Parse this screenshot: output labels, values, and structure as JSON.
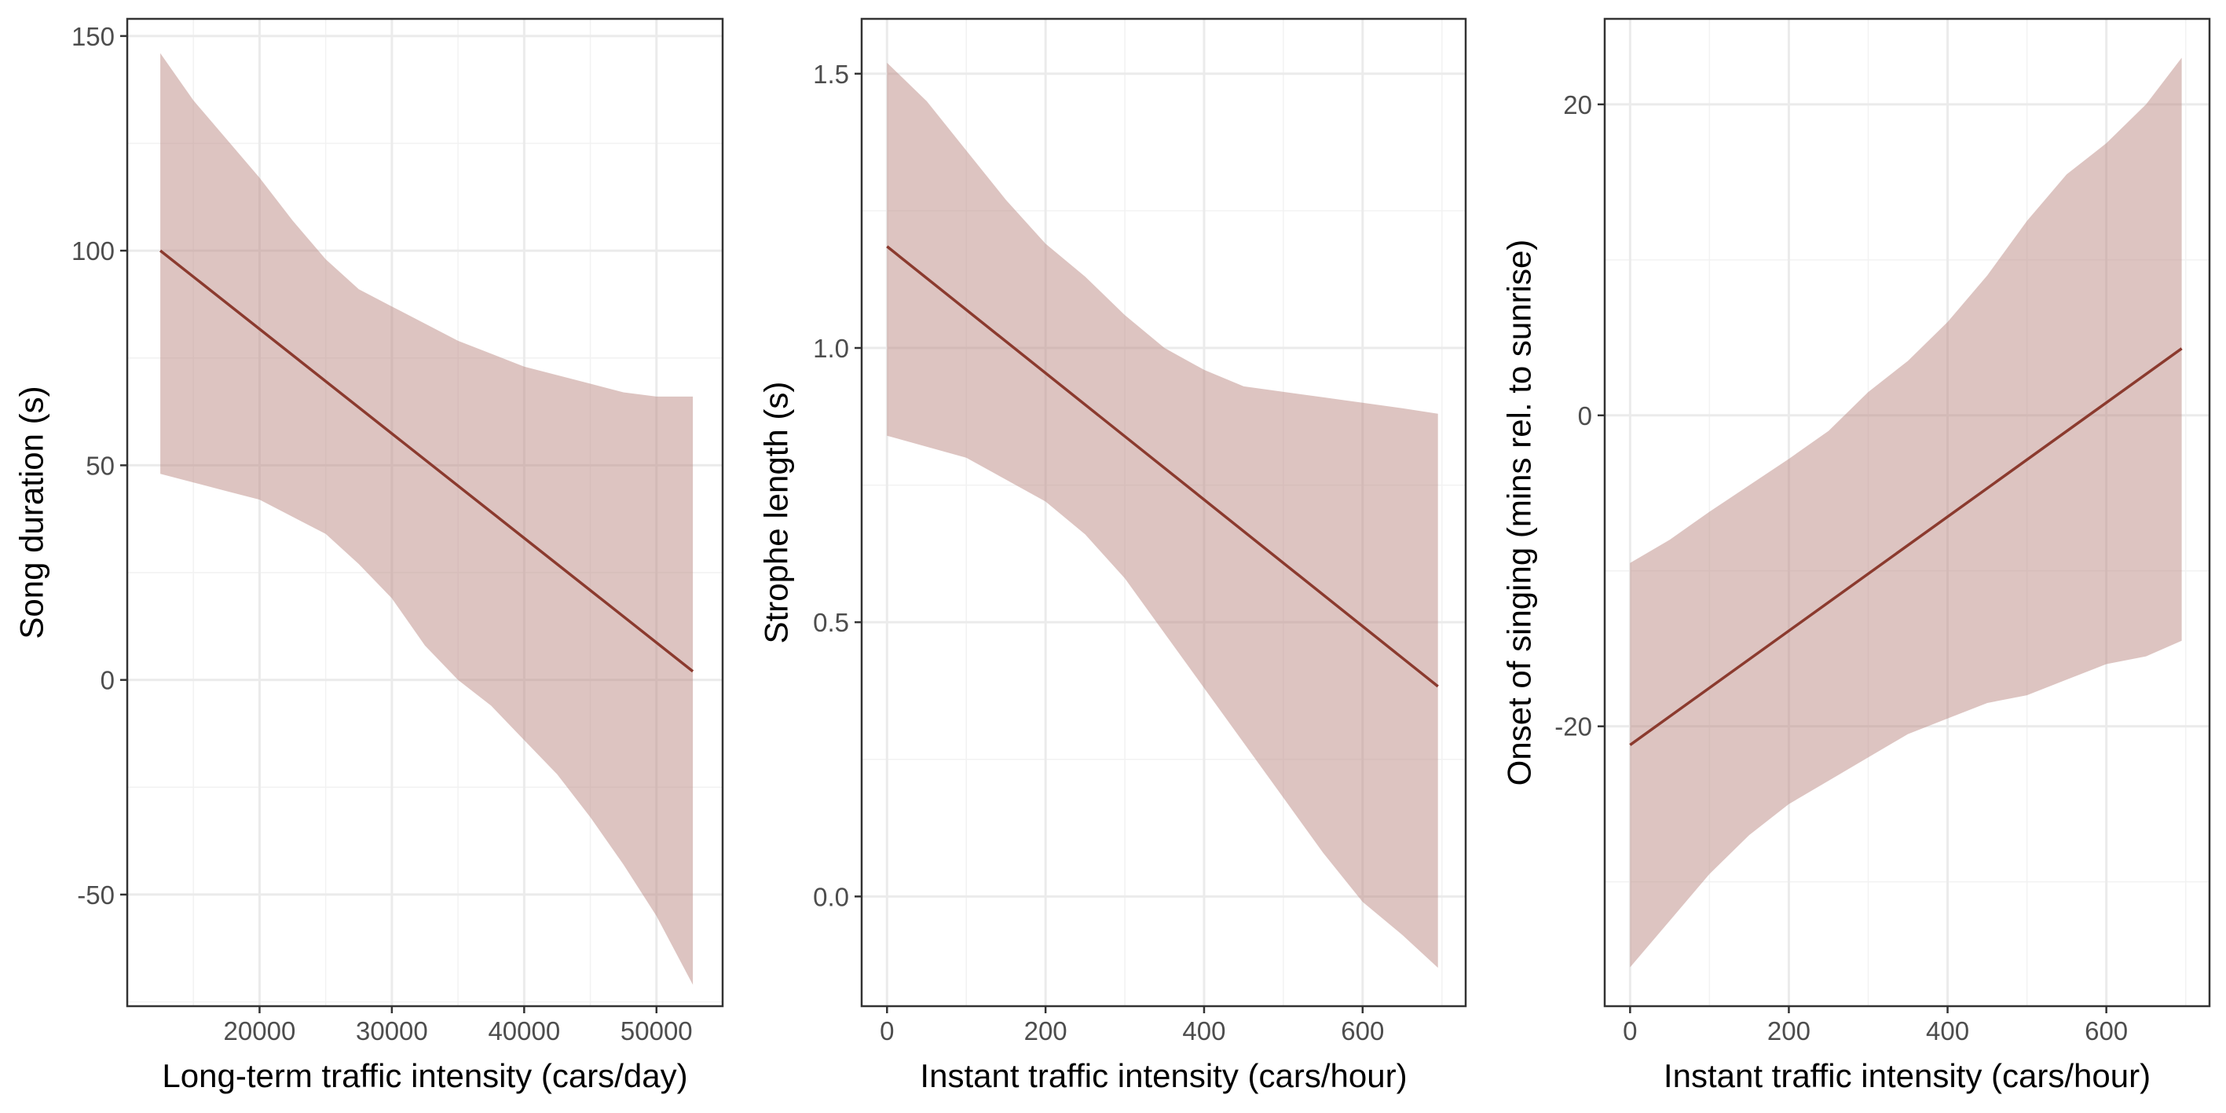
{
  "colors": {
    "line": "#8B3A2E",
    "ribbon": "#BC8A83",
    "ribbon_opacity": 0.5,
    "panel_border": "#333333",
    "major_grid": "#EBEBEB",
    "minor_grid": "#F2F2F2",
    "tick_label": "#4D4D4D",
    "axis_title": "#000000",
    "background": "#FFFFFF"
  },
  "chart_data": [
    {
      "type": "line",
      "panel": "left",
      "xlabel": "Long-term traffic intensity (cars/day)",
      "ylabel": "Song duration (s)",
      "xlim": [
        10000,
        55000
      ],
      "ylim": [
        -76,
        154
      ],
      "x_ticks": [
        20000,
        30000,
        40000,
        50000
      ],
      "y_ticks": [
        -50,
        0,
        50,
        100,
        150
      ],
      "grid": true,
      "series": [
        {
          "x": [
            12500,
            52750
          ],
          "fit": [
            100,
            2
          ]
        }
      ],
      "ribbon": {
        "x": [
          12500,
          15000,
          17500,
          20000,
          22500,
          25000,
          27500,
          30000,
          32500,
          35000,
          37500,
          40000,
          42500,
          45000,
          47500,
          50000,
          52750
        ],
        "upper": [
          146,
          135,
          126,
          117,
          107,
          98,
          91,
          87,
          83,
          79,
          76,
          73,
          71,
          69,
          67,
          66,
          66
        ],
        "lower": [
          48,
          46,
          44,
          42,
          38,
          34,
          27,
          19,
          8,
          0,
          -6,
          -14,
          -22,
          -32,
          -43,
          -55,
          -71
        ]
      }
    },
    {
      "type": "line",
      "panel": "middle",
      "xlabel": "Instant traffic intensity (cars/hour)",
      "ylabel": "Strophe length (s)",
      "xlim": [
        -32,
        730
      ],
      "ylim": [
        -0.2,
        1.6
      ],
      "x_ticks": [
        0,
        200,
        400,
        600
      ],
      "y_ticks": [
        0.0,
        0.5,
        1.0,
        1.5
      ],
      "y_tick_labels": [
        "0.0",
        "0.5",
        "1.0",
        "1.5"
      ],
      "grid": true,
      "series": [
        {
          "x": [
            0,
            695
          ],
          "fit": [
            1.185,
            0.383
          ]
        }
      ],
      "ribbon": {
        "x": [
          0,
          50,
          100,
          150,
          200,
          250,
          300,
          350,
          400,
          450,
          500,
          550,
          600,
          650,
          695
        ],
        "upper": [
          1.52,
          1.45,
          1.36,
          1.27,
          1.19,
          1.13,
          1.06,
          1.0,
          0.96,
          0.93,
          0.92,
          0.91,
          0.9,
          0.89,
          0.88
        ],
        "lower": [
          0.84,
          0.82,
          0.8,
          0.76,
          0.72,
          0.66,
          0.58,
          0.48,
          0.38,
          0.28,
          0.18,
          0.08,
          -0.01,
          -0.07,
          -0.13
        ]
      }
    },
    {
      "type": "line",
      "panel": "right",
      "xlabel": "Instant traffic intensity (cars/hour)",
      "ylabel": "Onset of singing (mins rel. to sunrise)",
      "xlim": [
        -32,
        730
      ],
      "ylim": [
        -38,
        25.5
      ],
      "x_ticks": [
        0,
        200,
        400,
        600
      ],
      "y_ticks": [
        -20,
        0,
        20
      ],
      "grid": true,
      "series": [
        {
          "x": [
            0,
            695
          ],
          "fit": [
            -21.2,
            4.3
          ]
        }
      ],
      "ribbon": {
        "x": [
          0,
          50,
          100,
          150,
          200,
          250,
          300,
          350,
          400,
          450,
          500,
          550,
          600,
          650,
          695
        ],
        "upper": [
          -9.5,
          -8.0,
          -6.2,
          -4.5,
          -2.8,
          -1.0,
          1.5,
          3.5,
          6.0,
          9.0,
          12.5,
          15.5,
          17.5,
          20.0,
          23.0
        ],
        "lower": [
          -35.5,
          -32.5,
          -29.5,
          -27.0,
          -25.0,
          -23.5,
          -22.0,
          -20.5,
          -19.5,
          -18.5,
          -18.0,
          -17.0,
          -16.0,
          -15.5,
          -14.5
        ]
      }
    }
  ]
}
